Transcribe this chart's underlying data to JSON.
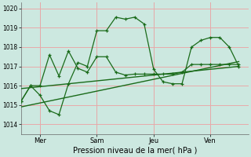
{
  "bg_color": "#cce8e0",
  "grid_color": "#e8aaaa",
  "line_color": "#1a6b1a",
  "vline_color": "#999999",
  "title": "Pression niveau de la mer( hPa )",
  "day_labels": [
    "Mer",
    "Sam",
    "Jeu",
    "Ven"
  ],
  "day_positions": [
    1,
    4,
    7,
    10
  ],
  "vline_positions": [
    1,
    4,
    7,
    10
  ],
  "ylim": [
    1013.5,
    1020.3
  ],
  "yticks": [
    1014,
    1015,
    1016,
    1017,
    1018,
    1019,
    1020
  ],
  "xlim": [
    0,
    12
  ],
  "line1_x": [
    0.0,
    0.5,
    1.0,
    1.5,
    2.0,
    2.5,
    3.0,
    3.5,
    4.0,
    4.5,
    5.0,
    5.5,
    6.0,
    6.5,
    7.0,
    7.5,
    8.0,
    8.5,
    9.0,
    9.5,
    10.0,
    10.5,
    11.0,
    11.5
  ],
  "line1_y": [
    1015.2,
    1016.0,
    1015.5,
    1014.7,
    1014.5,
    1016.1,
    1017.2,
    1017.0,
    1018.85,
    1018.85,
    1019.55,
    1019.45,
    1019.55,
    1019.2,
    1016.85,
    1016.2,
    1016.1,
    1016.1,
    1018.0,
    1018.35,
    1018.5,
    1018.5,
    1018.0,
    1017.0
  ],
  "line2_x": [
    0.0,
    0.5,
    1.0,
    1.5,
    2.0,
    2.5,
    3.0,
    3.5,
    4.0,
    4.5,
    5.0,
    5.5,
    6.0,
    6.5,
    7.0,
    7.5,
    8.0,
    8.5,
    9.0,
    9.5,
    10.0,
    10.5,
    11.0,
    11.5
  ],
  "line2_y": [
    1015.2,
    1016.0,
    1016.0,
    1017.6,
    1016.5,
    1017.8,
    1016.9,
    1016.7,
    1017.5,
    1017.5,
    1016.7,
    1016.55,
    1016.6,
    1016.6,
    1016.6,
    1016.6,
    1016.6,
    1016.7,
    1017.1,
    1017.1,
    1017.1,
    1017.1,
    1017.1,
    1017.1
  ],
  "trend1_x": [
    0.0,
    11.5
  ],
  "trend1_y": [
    1015.85,
    1017.0
  ],
  "trend2_x": [
    0.0,
    11.5
  ],
  "trend2_y": [
    1014.9,
    1017.25
  ],
  "ylabel_fontsize": 5.5,
  "xlabel_fontsize": 6.5,
  "xtick_fontsize": 6,
  "title_fontsize": 7
}
